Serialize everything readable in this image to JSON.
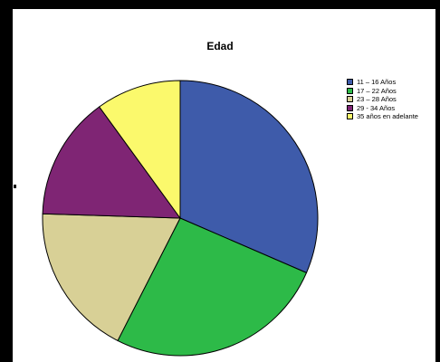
{
  "chart_data": {
    "type": "pie",
    "title": "Edad",
    "categories": [
      "11 – 16 Años",
      "17 – 22 Años",
      "23 – 28 Años",
      "29 - 34 Años",
      "35 años en adelante"
    ],
    "values": [
      31.5,
      26,
      18,
      14.5,
      10
    ],
    "colors": [
      "#3e5baa",
      "#2dba48",
      "#d8d096",
      "#7f2574",
      "#fbf96c"
    ],
    "legend_position": "right",
    "start_angle_deg": 0,
    "direction": "clockwise"
  }
}
